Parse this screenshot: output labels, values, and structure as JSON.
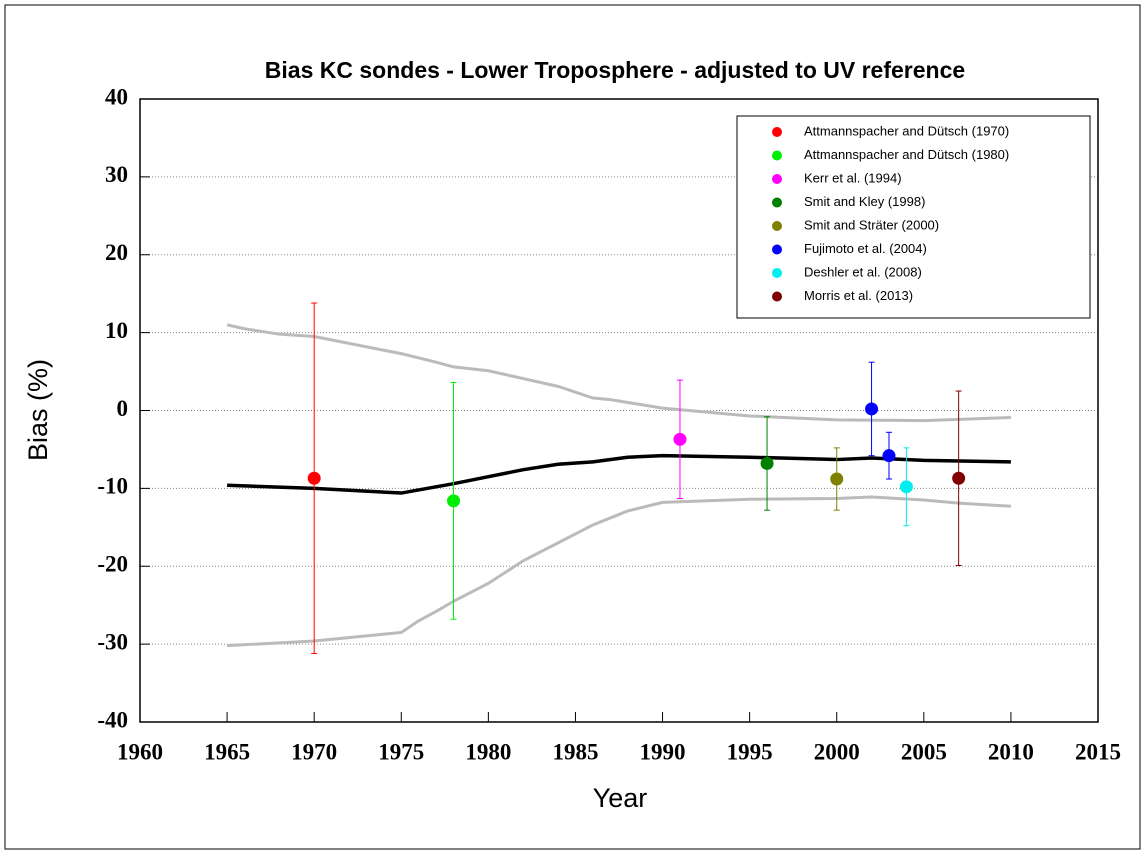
{
  "chart_data": {
    "type": "scatter",
    "title": "Bias KC sondes - Lower Troposphere - adjusted to UV reference",
    "xlabel": "Year",
    "ylabel": "Bias (%)",
    "xlim": [
      1960,
      2015
    ],
    "xticks": [
      1960,
      1965,
      1970,
      1975,
      1980,
      1985,
      1990,
      1995,
      2000,
      2005,
      2010,
      2015
    ],
    "ylim": [
      -40,
      40
    ],
    "yticks": [
      -40,
      -30,
      -20,
      -10,
      0,
      10,
      20,
      30,
      40
    ],
    "grid": true,
    "legend": "upper right",
    "series": [
      {
        "name": "Attmannspacher and Dütsch (1970)",
        "color": "#ff0000",
        "x": [
          1970
        ],
        "values": [
          -8.7
        ],
        "errors": [
          22.5
        ]
      },
      {
        "name": "Attmannspacher and Dütsch (1980)",
        "color": "#00ee00",
        "x": [
          1978
        ],
        "values": [
          -11.6
        ],
        "errors": [
          15.2
        ]
      },
      {
        "name": "Kerr et al. (1994)",
        "color": "#ff00ff",
        "x": [
          1991
        ],
        "values": [
          -3.7
        ],
        "errors": [
          7.6
        ]
      },
      {
        "name": "Smit and Kley (1998)",
        "color": "#008000",
        "x": [
          1996
        ],
        "values": [
          -6.8
        ],
        "errors": [
          6
        ]
      },
      {
        "name": "Smit and Sträter (2000)",
        "color": "#808000",
        "x": [
          2000
        ],
        "values": [
          -8.8
        ],
        "errors": [
          4
        ]
      },
      {
        "name": "Fujimoto et al. (2004)",
        "color": "#0000ff",
        "x": [
          2002,
          2003
        ],
        "values": [
          0.2,
          -5.8
        ],
        "errors": [
          6,
          3
        ]
      },
      {
        "name": "Deshler et al. (2008)",
        "color": "#00eeee",
        "x": [
          2004
        ],
        "values": [
          -9.8
        ],
        "errors": [
          5
        ]
      },
      {
        "name": "Morris et al. (2013)",
        "color": "#800000",
        "x": [
          2007
        ],
        "values": [
          -8.7
        ],
        "errors": [
          11.2
        ]
      }
    ],
    "lines": [
      {
        "color": "#000000",
        "x": [
          1965,
          1970,
          1975,
          1978,
          1980,
          1982,
          1984,
          1986,
          1988,
          1990,
          1995,
          2000,
          2002,
          2005,
          2010
        ],
        "values": [
          -9.6,
          -10,
          -10.6,
          -9.4,
          -8.5,
          -7.6,
          -6.9,
          -6.6,
          -6,
          -5.8,
          -6,
          -6.3,
          -6.1,
          -6.4,
          -6.6
        ]
      },
      {
        "color": "#bbbbbb",
        "x": [
          1965,
          1966,
          1968,
          1970,
          1975,
          1977,
          1978,
          1980,
          1982,
          1984,
          1986,
          1987,
          1990,
          1995,
          2000,
          2005,
          2010
        ],
        "values": [
          11,
          10.5,
          9.8,
          9.5,
          7.3,
          6.2,
          5.6,
          5.1,
          4.1,
          3.1,
          1.6,
          1.4,
          0.3,
          -0.7,
          -1.2,
          -1.3,
          -0.9
        ]
      },
      {
        "color": "#bbbbbb",
        "x": [
          1965,
          1970,
          1975,
          1976,
          1977,
          1978,
          1980,
          1982,
          1984,
          1986,
          1988,
          1990,
          1995,
          2000,
          2002,
          2005,
          2007,
          2010
        ],
        "values": [
          -30.2,
          -29.6,
          -28.5,
          -27,
          -25.8,
          -24.5,
          -22.2,
          -19.3,
          -17,
          -14.7,
          -12.9,
          -11.8,
          -11.4,
          -11.3,
          -11.1,
          -11.5,
          -11.9,
          -12.3
        ]
      }
    ]
  }
}
